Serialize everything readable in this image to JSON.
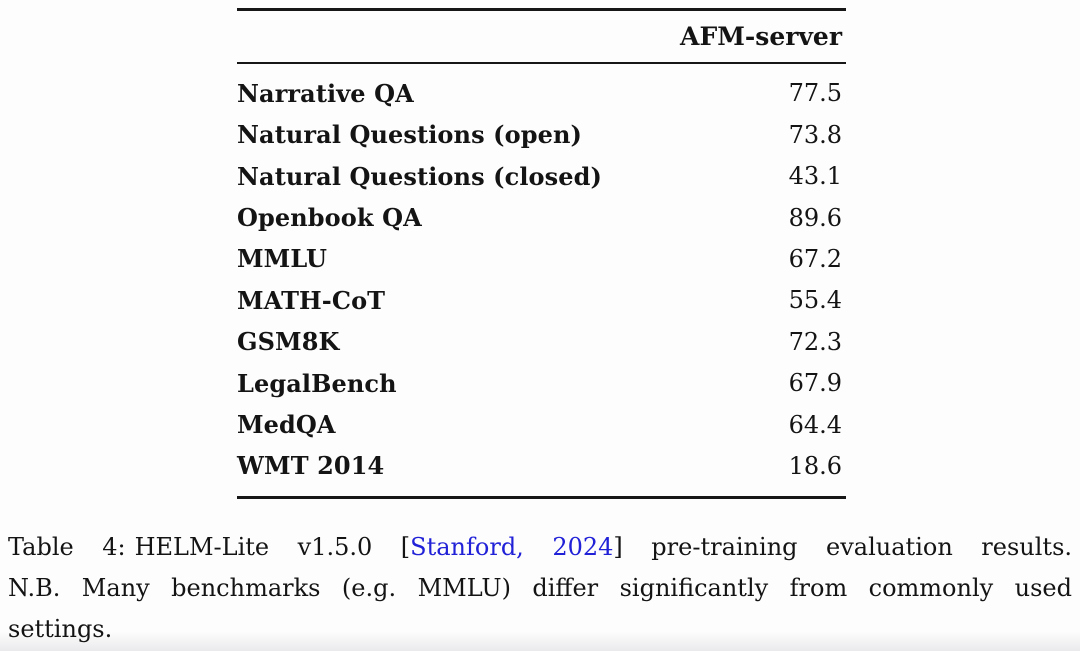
{
  "page": {
    "background": "#fdfdfd",
    "text_color": "#141414"
  },
  "table": {
    "header": "AFM-server",
    "rows": [
      {
        "label": "Narrative QA",
        "value": "77.5"
      },
      {
        "label": "Natural Questions (open)",
        "value": "73.8"
      },
      {
        "label": "Natural Questions (closed)",
        "value": "43.1"
      },
      {
        "label": "Openbook QA",
        "value": "89.6"
      },
      {
        "label": "MMLU",
        "value": "67.2"
      },
      {
        "label": "MATH-CoT",
        "value": "55.4"
      },
      {
        "label": "GSM8K",
        "value": "72.3"
      },
      {
        "label": "LegalBench",
        "value": "67.9"
      },
      {
        "label": "MedQA",
        "value": "64.4"
      },
      {
        "label": "WMT 2014",
        "value": "18.6"
      }
    ]
  },
  "caption": {
    "label": "Table 4:",
    "before_link": "HELM-Lite v1.5.0 [",
    "link_text": "Stanford, 2024",
    "after_link": "] pre-training evaluation results.",
    "line2": "N.B. Many benchmarks (e.g. MMLU) differ significantly from commonly used",
    "line3": "settings.",
    "link_color": "#2121d8"
  }
}
